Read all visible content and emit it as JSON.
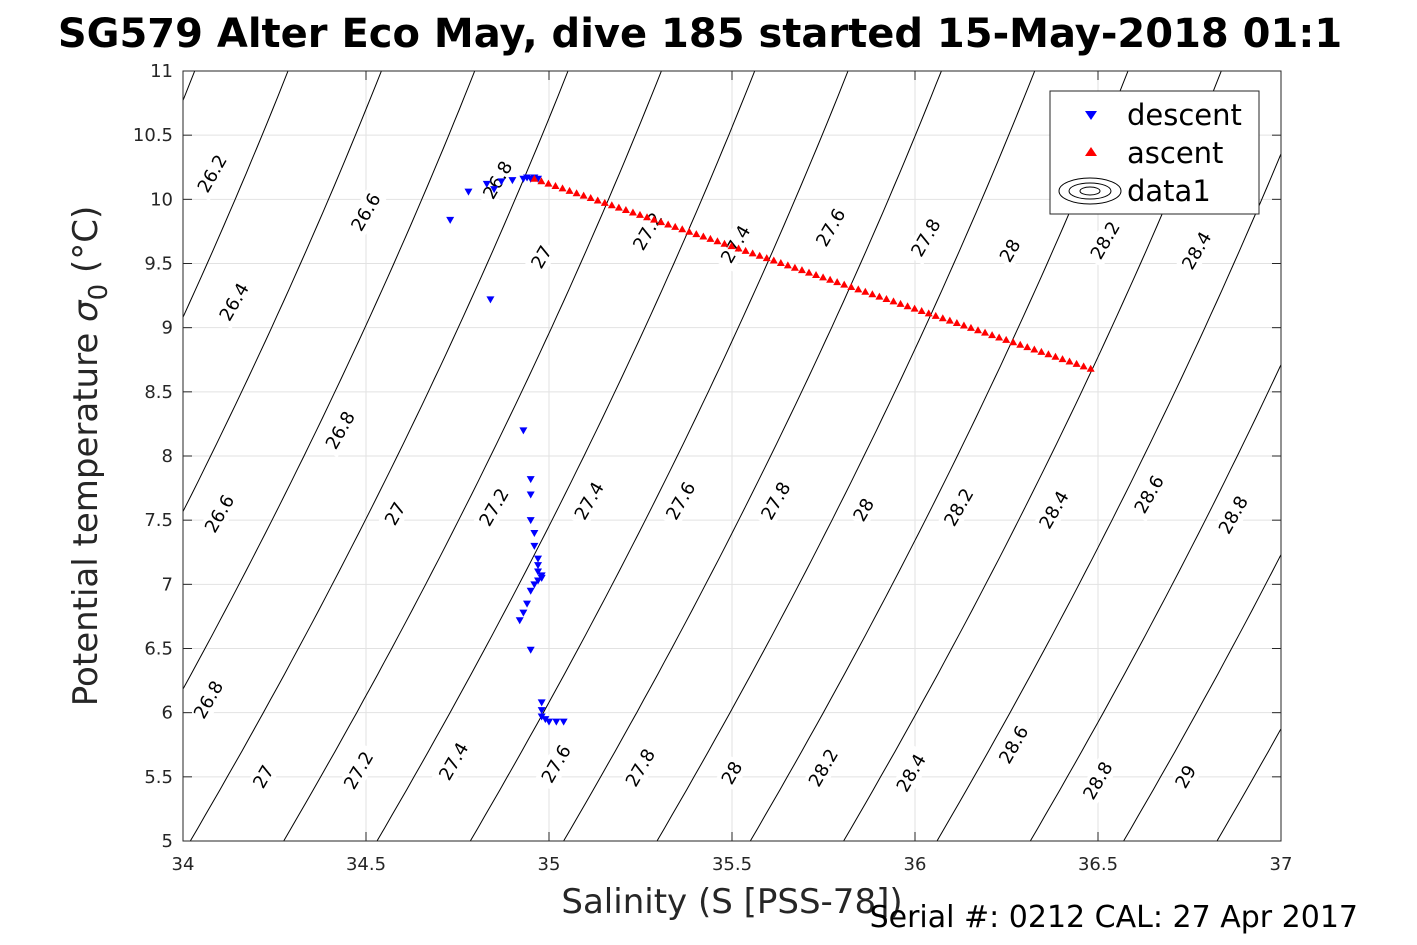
{
  "chart_data": {
    "type": "scatter",
    "title": "SG579 Alter Eco May, dive 185 started 15-May-2018 01:1",
    "xlabel": "Salinity (S [PSS-78])",
    "ylabel_main": "Potential temperature ",
    "ylabel_symbol": "σ",
    "ylabel_sub": "0",
    "ylabel_unit": " (°C)",
    "xlim": [
      34,
      37
    ],
    "ylim": [
      5,
      11
    ],
    "x_ticks": [
      34,
      34.5,
      35,
      35.5,
      36,
      36.5,
      37
    ],
    "x_tick_labels": [
      "34",
      "34.5",
      "35",
      "35.5",
      "36",
      "36.5",
      "37"
    ],
    "y_ticks": [
      5,
      5.5,
      6,
      6.5,
      7,
      7.5,
      8,
      8.5,
      9,
      9.5,
      10,
      10.5,
      11
    ],
    "y_tick_labels": [
      "5",
      "5.5",
      "6",
      "6.5",
      "7",
      "7.5",
      "8",
      "8.5",
      "9",
      "9.5",
      "10",
      "10.5",
      "11"
    ],
    "grid": true,
    "legend_position": "top-right",
    "legend": [
      {
        "label": "descent",
        "marker": "triangle-down",
        "color": "#0000ff"
      },
      {
        "label": "ascent",
        "marker": "triangle-up",
        "color": "#ff0000"
      },
      {
        "label": "data1",
        "marker": "contour",
        "color": "#000000"
      }
    ],
    "contour_levels": [
      26.2,
      26.4,
      26.6,
      26.8,
      27,
      27.2,
      27.4,
      27.6,
      27.8,
      28,
      28.2,
      28.4,
      28.6,
      28.8,
      29
    ],
    "contour_labels": [
      {
        "text": "26.2",
        "x": 34.08,
        "y": 10.2
      },
      {
        "text": "26.6",
        "x": 34.5,
        "y": 9.9
      },
      {
        "text": "26.8",
        "x": 34.86,
        "y": 10.15
      },
      {
        "text": "26.4",
        "x": 34.14,
        "y": 9.2
      },
      {
        "text": "27",
        "x": 34.98,
        "y": 9.55
      },
      {
        "text": "27.2",
        "x": 35.27,
        "y": 9.75
      },
      {
        "text": "27.4",
        "x": 35.51,
        "y": 9.65
      },
      {
        "text": "27.6",
        "x": 35.77,
        "y": 9.78
      },
      {
        "text": "27.8",
        "x": 36.03,
        "y": 9.7
      },
      {
        "text": "28",
        "x": 36.26,
        "y": 9.6
      },
      {
        "text": "28.2",
        "x": 36.52,
        "y": 9.68
      },
      {
        "text": "28.4",
        "x": 36.77,
        "y": 9.6
      },
      {
        "text": "26.8",
        "x": 34.43,
        "y": 8.2
      },
      {
        "text": "26.6",
        "x": 34.1,
        "y": 7.55
      },
      {
        "text": "27",
        "x": 34.58,
        "y": 7.55
      },
      {
        "text": "27.2",
        "x": 34.85,
        "y": 7.6
      },
      {
        "text": "27.4",
        "x": 35.11,
        "y": 7.65
      },
      {
        "text": "27.6",
        "x": 35.36,
        "y": 7.65
      },
      {
        "text": "27.8",
        "x": 35.62,
        "y": 7.65
      },
      {
        "text": "28",
        "x": 35.86,
        "y": 7.58
      },
      {
        "text": "28.2",
        "x": 36.12,
        "y": 7.6
      },
      {
        "text": "28.4",
        "x": 36.38,
        "y": 7.58
      },
      {
        "text": "28.6",
        "x": 36.64,
        "y": 7.7
      },
      {
        "text": "28.8",
        "x": 36.87,
        "y": 7.54
      },
      {
        "text": "26.8",
        "x": 34.07,
        "y": 6.1
      },
      {
        "text": "27",
        "x": 34.22,
        "y": 5.5
      },
      {
        "text": "27.2",
        "x": 34.48,
        "y": 5.55
      },
      {
        "text": "27.4",
        "x": 34.74,
        "y": 5.62
      },
      {
        "text": "27.6",
        "x": 35.02,
        "y": 5.6
      },
      {
        "text": "27.8",
        "x": 35.25,
        "y": 5.57
      },
      {
        "text": "28",
        "x": 35.5,
        "y": 5.53
      },
      {
        "text": "28.2",
        "x": 35.75,
        "y": 5.57
      },
      {
        "text": "28.4",
        "x": 35.99,
        "y": 5.53
      },
      {
        "text": "28.6",
        "x": 36.27,
        "y": 5.75
      },
      {
        "text": "28.8",
        "x": 36.5,
        "y": 5.47
      },
      {
        "text": "29",
        "x": 36.74,
        "y": 5.5
      }
    ],
    "series": [
      {
        "name": "descent",
        "marker": "triangle-down",
        "color": "#0000ff",
        "x": [
          34.73,
          34.78,
          34.83,
          34.85,
          34.87,
          34.9,
          34.93,
          34.94,
          34.95,
          34.96,
          34.97,
          34.84,
          34.93,
          34.95,
          34.95,
          34.95,
          34.96,
          34.96,
          34.97,
          34.97,
          34.97,
          34.98,
          34.98,
          34.97,
          34.96,
          34.95,
          34.94,
          34.93,
          34.92,
          34.95,
          34.98,
          34.98,
          34.98,
          34.99,
          35.0,
          35.02,
          35.04
        ],
        "y": [
          9.84,
          10.06,
          10.12,
          10.08,
          10.14,
          10.15,
          10.16,
          10.17,
          10.16,
          10.17,
          10.16,
          9.22,
          8.2,
          7.82,
          7.7,
          7.5,
          7.4,
          7.3,
          7.2,
          7.15,
          7.1,
          7.07,
          7.05,
          7.03,
          7.0,
          6.95,
          6.85,
          6.78,
          6.72,
          6.49,
          6.08,
          6.02,
          5.97,
          5.95,
          5.93,
          5.93,
          5.93
        ]
      },
      {
        "name": "ascent",
        "marker": "triangle-up",
        "color": "#ff0000",
        "x_start": 34.96,
        "y_start": 10.16,
        "x_end": 36.48,
        "y_end": 8.68,
        "count": 80
      }
    ]
  },
  "serial_text": "Serial #: 0212  CAL: 27 Apr 2017"
}
